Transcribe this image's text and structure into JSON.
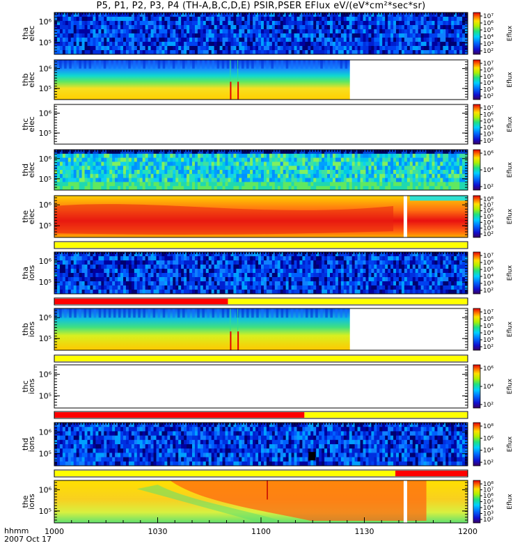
{
  "title": "P5, P1, P2, P3, P4 (TH-A,B,C,D,E) PSIR,PSER EFlux eV/(eV*cm²*sec*sr)",
  "footer": {
    "hhmm": "hhmm",
    "date": "2007 Oct 17"
  },
  "chart_data": {
    "type": "heatmap",
    "x_ticks": [
      "1000",
      "1030",
      "1100",
      "1130",
      "1200"
    ],
    "x_range": [
      "10:00",
      "12:00"
    ],
    "colorbar_label": "Eflux",
    "panels": [
      {
        "id": "tha-elec",
        "ylabel": [
          "tha",
          "elec"
        ],
        "yticks": [
          "10⁶",
          "10⁵"
        ],
        "cbar": [
          "10⁷",
          "10⁶",
          "10⁵",
          "10⁴",
          "10³",
          "10²"
        ],
        "pattern": "noise-blue",
        "end": 1.0,
        "bar": null
      },
      {
        "id": "thb-elec",
        "ylabel": [
          "thb",
          "elec"
        ],
        "yticks": [
          "10⁶",
          "10⁵"
        ],
        "cbar": [
          "10⁷",
          "10⁶",
          "10⁵",
          "10⁴",
          "10³",
          "10²"
        ],
        "pattern": "band",
        "end": 0.715,
        "bar": null
      },
      {
        "id": "thc-elec",
        "ylabel": [
          "thc",
          "elec"
        ],
        "yticks": [
          "10⁶",
          "10⁵"
        ],
        "cbar": [
          "10⁷",
          "10⁶",
          "10⁵",
          "10⁴",
          "10³",
          "10²"
        ],
        "pattern": "empty",
        "end": 0.0,
        "bar": null
      },
      {
        "id": "thd-elec",
        "ylabel": [
          "thd",
          "elec"
        ],
        "yticks": [
          "10⁶",
          "10⁵"
        ],
        "cbar": [
          "10⁶",
          "10⁴",
          "10²"
        ],
        "pattern": "noise-cyan",
        "end": 1.0,
        "bar": null
      },
      {
        "id": "the-elec",
        "ylabel": [
          "the",
          "elec"
        ],
        "yticks": [
          "10⁶",
          "10⁵"
        ],
        "cbar": [
          "10⁸",
          "10⁷",
          "10⁶",
          "10⁵",
          "10⁴",
          "10³",
          "10²"
        ],
        "pattern": "hot",
        "end": 1.0,
        "bar": null
      },
      {
        "id": "tha-ions",
        "ylabel": [
          "tha",
          "ions"
        ],
        "yticks": [
          "10⁶",
          "10⁵"
        ],
        "cbar": [
          "10⁷",
          "10⁶",
          "10⁵",
          "10⁴",
          "10³",
          "10²"
        ],
        "pattern": "noise-blue",
        "end": 1.0,
        "bar": [
          {
            "c": "#ffff00",
            "from": 0,
            "to": 1
          }
        ]
      },
      {
        "id": "thb-ions",
        "ylabel": [
          "thb",
          "ions"
        ],
        "yticks": [
          "10⁶",
          "10⁵"
        ],
        "cbar": [
          "10⁷",
          "10⁶",
          "10⁵",
          "10⁴",
          "10³",
          "10²"
        ],
        "pattern": "band",
        "end": 0.715,
        "bar": [
          {
            "c": "#ff0000",
            "from": 0,
            "to": 0.42
          },
          {
            "c": "#ffff00",
            "from": 0.42,
            "to": 1
          }
        ]
      },
      {
        "id": "thc-ions",
        "ylabel": [
          "thc",
          "ions"
        ],
        "yticks": [
          "10⁶",
          "10⁵"
        ],
        "cbar": [
          "10⁶",
          "10⁴",
          "10²"
        ],
        "pattern": "empty",
        "end": 0.0,
        "bar": [
          {
            "c": "#ffff00",
            "from": 0,
            "to": 1
          }
        ]
      },
      {
        "id": "thd-ions",
        "ylabel": [
          "thd",
          "ions"
        ],
        "yticks": [
          "10⁶",
          "10⁵"
        ],
        "cbar": [
          "10⁸",
          "10⁶",
          "10⁴",
          "10²"
        ],
        "pattern": "noise-blue2",
        "end": 1.0,
        "bar": [
          {
            "c": "#ff0000",
            "from": 0,
            "to": 0.605
          },
          {
            "c": "#ffff00",
            "from": 0.605,
            "to": 1
          }
        ]
      },
      {
        "id": "the-ions",
        "ylabel": [
          "the",
          "ions"
        ],
        "yticks": [
          "10⁶",
          "10⁵"
        ],
        "cbar": [
          "10⁸",
          "10⁷",
          "10⁶",
          "10⁵",
          "10⁴",
          "10³",
          "10²"
        ],
        "pattern": "hot2",
        "end": 1.0,
        "bar": [
          {
            "c": "#ffff00",
            "from": 0,
            "to": 0.825
          },
          {
            "c": "#ff0000",
            "from": 0.825,
            "to": 1
          }
        ]
      }
    ]
  }
}
